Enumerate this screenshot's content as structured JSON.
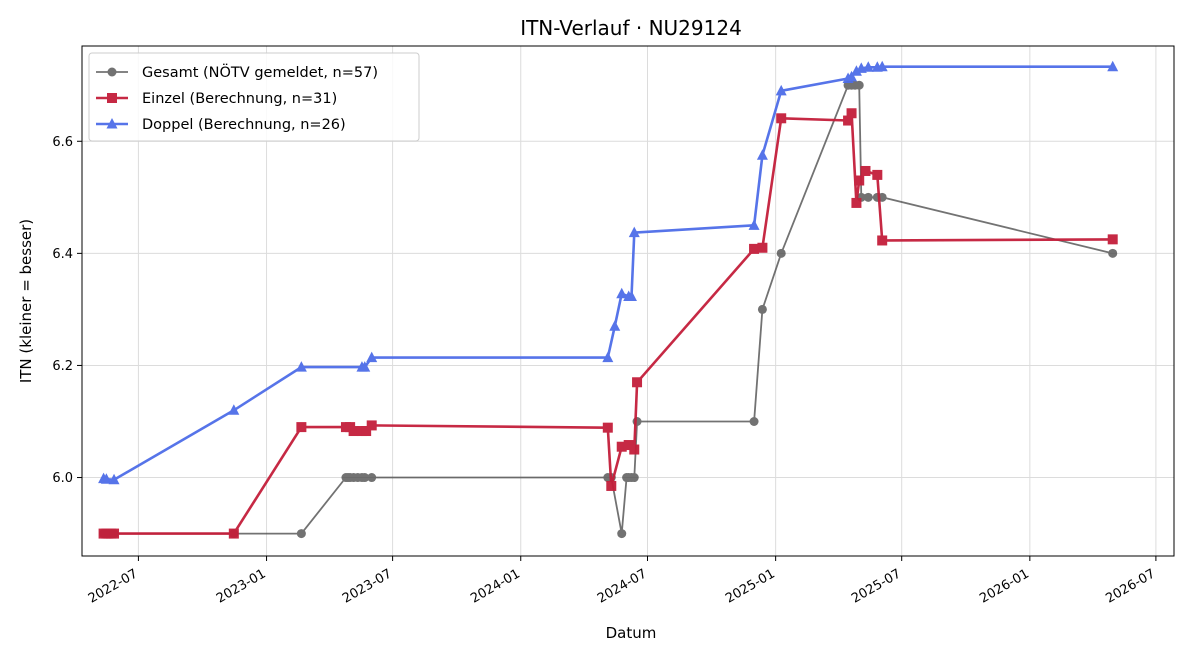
{
  "chart_data": {
    "type": "line",
    "title": "ITN-Verlauf · NU29124",
    "xlabel": "Datum",
    "ylabel": "ITN  (kleiner = besser)",
    "xlim": [
      "2022-04-11",
      "2026-07-27"
    ],
    "ylim": [
      5.86,
      6.77
    ],
    "x_ticks": [
      "2022-07",
      "2023-01",
      "2023-07",
      "2024-01",
      "2024-07",
      "2025-01",
      "2025-07",
      "2026-01",
      "2026-07"
    ],
    "y_ticks": [
      6.0,
      6.2,
      6.4,
      6.6
    ],
    "grid": true,
    "legend_position": "top-left",
    "series": [
      {
        "name": "Gesamt (NÖTV gemeldet, n=57)",
        "color": "#444444",
        "marker": "circle",
        "points": [
          [
            "2022-05-12",
            5.9
          ],
          [
            "2022-05-14",
            5.9
          ],
          [
            "2022-05-16",
            5.9
          ],
          [
            "2022-05-19",
            5.9
          ],
          [
            "2022-05-23",
            5.9
          ],
          [
            "2022-05-27",
            5.9
          ],
          [
            "2022-11-15",
            5.9
          ],
          [
            "2023-02-20",
            5.9
          ],
          [
            "2023-04-25",
            6.0
          ],
          [
            "2023-04-28",
            6.0
          ],
          [
            "2023-05-01",
            6.0
          ],
          [
            "2023-05-06",
            6.0
          ],
          [
            "2023-05-12",
            6.0
          ],
          [
            "2023-05-18",
            6.0
          ],
          [
            "2023-05-22",
            6.0
          ],
          [
            "2023-06-01",
            6.0
          ],
          [
            "2024-05-05",
            6.0
          ],
          [
            "2024-05-10",
            6.0
          ],
          [
            "2024-05-25",
            5.9
          ],
          [
            "2024-06-01",
            6.0
          ],
          [
            "2024-06-04",
            6.0
          ],
          [
            "2024-06-08",
            6.0
          ],
          [
            "2024-06-12",
            6.0
          ],
          [
            "2024-06-16",
            6.1
          ],
          [
            "2024-12-01",
            6.1
          ],
          [
            "2024-12-13",
            6.3
          ],
          [
            "2025-01-09",
            6.4
          ],
          [
            "2025-04-15",
            6.7
          ],
          [
            "2025-04-20",
            6.7
          ],
          [
            "2025-04-25",
            6.7
          ],
          [
            "2025-05-01",
            6.7
          ],
          [
            "2025-05-04",
            6.5
          ],
          [
            "2025-05-14",
            6.5
          ],
          [
            "2025-05-27",
            6.5
          ],
          [
            "2025-06-03",
            6.5
          ],
          [
            "2026-04-30",
            6.4
          ]
        ]
      },
      {
        "name": "Einzel (Berechnung, n=31)",
        "color": "#c41e3a",
        "marker": "square",
        "points": [
          [
            "2022-05-12",
            5.9
          ],
          [
            "2022-05-16",
            5.9
          ],
          [
            "2022-05-19",
            5.9
          ],
          [
            "2022-05-23",
            5.9
          ],
          [
            "2022-05-27",
            5.9
          ],
          [
            "2022-11-15",
            5.9
          ],
          [
            "2023-02-20",
            6.09
          ],
          [
            "2023-04-25",
            6.09
          ],
          [
            "2023-05-01",
            6.09
          ],
          [
            "2023-05-06",
            6.083
          ],
          [
            "2023-05-18",
            6.083
          ],
          [
            "2023-05-24",
            6.083
          ],
          [
            "2023-06-01",
            6.093
          ],
          [
            "2024-05-05",
            6.089
          ],
          [
            "2024-05-10",
            5.985
          ],
          [
            "2024-05-25",
            6.055
          ],
          [
            "2024-06-04",
            6.058
          ],
          [
            "2024-06-12",
            6.05
          ],
          [
            "2024-06-16",
            6.17
          ],
          [
            "2024-12-01",
            6.408
          ],
          [
            "2024-12-13",
            6.41
          ],
          [
            "2025-01-09",
            6.641
          ],
          [
            "2025-04-15",
            6.637
          ],
          [
            "2025-04-20",
            6.65
          ],
          [
            "2025-04-27",
            6.49
          ],
          [
            "2025-05-01",
            6.53
          ],
          [
            "2025-05-10",
            6.547
          ],
          [
            "2025-05-27",
            6.54
          ],
          [
            "2025-06-03",
            6.423
          ],
          [
            "2026-04-30",
            6.425
          ]
        ]
      },
      {
        "name": "Doppel (Berechnung, n=26)",
        "color": "#4e6de8",
        "marker": "triangle",
        "points": [
          [
            "2022-05-12",
            5.998
          ],
          [
            "2022-05-16",
            5.997
          ],
          [
            "2022-05-27",
            5.996
          ],
          [
            "2022-11-15",
            6.12
          ],
          [
            "2023-02-20",
            6.197
          ],
          [
            "2023-05-18",
            6.197
          ],
          [
            "2023-05-22",
            6.197
          ],
          [
            "2023-06-01",
            6.214
          ],
          [
            "2024-05-05",
            6.214
          ],
          [
            "2024-05-15",
            6.27
          ],
          [
            "2024-05-25",
            6.328
          ],
          [
            "2024-06-04",
            6.323
          ],
          [
            "2024-06-08",
            6.323
          ],
          [
            "2024-06-12",
            6.437
          ],
          [
            "2024-12-01",
            6.45
          ],
          [
            "2024-12-13",
            6.575
          ],
          [
            "2025-01-09",
            6.69
          ],
          [
            "2025-04-15",
            6.712
          ],
          [
            "2025-04-20",
            6.715
          ],
          [
            "2025-04-27",
            6.725
          ],
          [
            "2025-05-04",
            6.73
          ],
          [
            "2025-05-14",
            6.732
          ],
          [
            "2025-05-27",
            6.732
          ],
          [
            "2025-06-03",
            6.733
          ],
          [
            "2026-04-30",
            6.733
          ]
        ]
      }
    ]
  }
}
